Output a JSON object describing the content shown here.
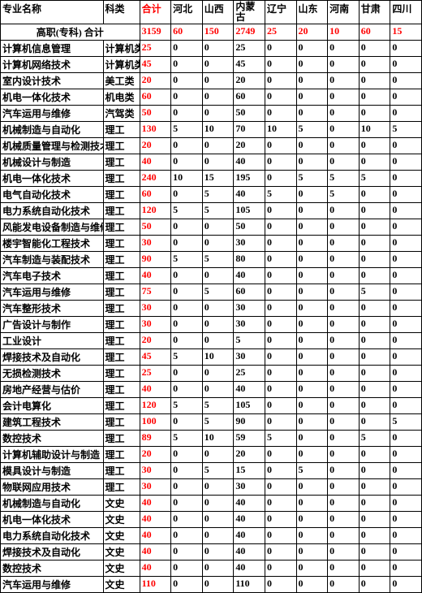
{
  "header": {
    "major": "专业名称",
    "category": "科类",
    "total": "合计",
    "provinces": [
      "河北",
      "山西",
      "内蒙古",
      "辽宁",
      "山东",
      "河南",
      "甘肃",
      "四川"
    ]
  },
  "totalRow": {
    "label": "高职(专科)   合计",
    "values": [
      "3159",
      "60",
      "150",
      "2749",
      "25",
      "20",
      "10",
      "60",
      "15"
    ]
  },
  "rows": [
    {
      "major": "计算机信息管理",
      "cat": "计算机类",
      "v": [
        "25",
        "0",
        "0",
        "25",
        "0",
        "0",
        "0",
        "0",
        "0"
      ]
    },
    {
      "major": "计算机网络技术",
      "cat": "计算机类",
      "v": [
        "45",
        "0",
        "0",
        "45",
        "0",
        "0",
        "0",
        "0",
        "0"
      ]
    },
    {
      "major": "室内设计技术",
      "cat": "美工类",
      "v": [
        "20",
        "0",
        "0",
        "20",
        "0",
        "0",
        "0",
        "0",
        "0"
      ]
    },
    {
      "major": "机电一体化技术",
      "cat": "机电类",
      "v": [
        "60",
        "0",
        "0",
        "60",
        "0",
        "0",
        "0",
        "0",
        "0"
      ]
    },
    {
      "major": "汽车运用与维修",
      "cat": "汽驾类",
      "v": [
        "50",
        "0",
        "0",
        "50",
        "0",
        "0",
        "0",
        "0",
        "0"
      ]
    },
    {
      "major": "机械制造与自动化",
      "cat": "理工",
      "v": [
        "130",
        "5",
        "10",
        "70",
        "10",
        "5",
        "0",
        "10",
        "5"
      ]
    },
    {
      "major": "机械质量管理与检测技术",
      "cat": "理工",
      "v": [
        "20",
        "0",
        "0",
        "20",
        "0",
        "0",
        "0",
        "0",
        "0"
      ]
    },
    {
      "major": "机械设计与制造",
      "cat": "理工",
      "v": [
        "40",
        "0",
        "0",
        "40",
        "0",
        "0",
        "0",
        "0",
        "0"
      ]
    },
    {
      "major": "机电一体化技术",
      "cat": "理工",
      "v": [
        "240",
        "10",
        "15",
        "195",
        "0",
        "5",
        "5",
        "5",
        "0"
      ]
    },
    {
      "major": "电气自动化技术",
      "cat": "理工",
      "v": [
        "60",
        "0",
        "5",
        "40",
        "5",
        "0",
        "5",
        "0",
        "0"
      ]
    },
    {
      "major": "电力系统自动化技术",
      "cat": "理工",
      "v": [
        "120",
        "5",
        "5",
        "105",
        "0",
        "0",
        "0",
        "0",
        "0"
      ]
    },
    {
      "major": "风能发电设备制造与维修",
      "cat": "理工",
      "v": [
        "50",
        "0",
        "0",
        "50",
        "0",
        "0",
        "0",
        "0",
        "0"
      ]
    },
    {
      "major": "楼宇智能化工程技术",
      "cat": "理工",
      "v": [
        "30",
        "0",
        "0",
        "30",
        "0",
        "0",
        "0",
        "0",
        "0"
      ]
    },
    {
      "major": "汽车制造与装配技术",
      "cat": "理工",
      "v": [
        "90",
        "5",
        "5",
        "80",
        "0",
        "0",
        "0",
        "0",
        "0"
      ]
    },
    {
      "major": "汽车电子技术",
      "cat": "理工",
      "v": [
        "40",
        "0",
        "0",
        "40",
        "0",
        "0",
        "0",
        "0",
        "0"
      ]
    },
    {
      "major": "汽车运用与维修",
      "cat": "理工",
      "v": [
        "75",
        "0",
        "5",
        "60",
        "0",
        "0",
        "0",
        "5",
        "0"
      ]
    },
    {
      "major": "汽车整形技术",
      "cat": "理工",
      "v": [
        "30",
        "0",
        "0",
        "30",
        "0",
        "0",
        "0",
        "0",
        "0"
      ]
    },
    {
      "major": "广告设计与制作",
      "cat": "理工",
      "v": [
        "30",
        "0",
        "0",
        "30",
        "0",
        "0",
        "0",
        "0",
        "0"
      ]
    },
    {
      "major": "工业设计",
      "cat": "理工",
      "v": [
        "20",
        "0",
        "0",
        "5",
        "0",
        "0",
        "0",
        "0",
        "0"
      ]
    },
    {
      "major": "焊接技术及自动化",
      "cat": "理工",
      "v": [
        "45",
        "5",
        "10",
        "30",
        "0",
        "0",
        "0",
        "0",
        "0"
      ]
    },
    {
      "major": "无损检测技术",
      "cat": "理工",
      "v": [
        "25",
        "0",
        "0",
        "25",
        "0",
        "0",
        "0",
        "0",
        "0"
      ]
    },
    {
      "major": "房地产经营与估价",
      "cat": "理工",
      "v": [
        "40",
        "0",
        "0",
        "40",
        "0",
        "0",
        "0",
        "0",
        "0"
      ]
    },
    {
      "major": "会计电算化",
      "cat": "理工",
      "v": [
        "120",
        "5",
        "5",
        "105",
        "0",
        "0",
        "0",
        "0",
        "0"
      ]
    },
    {
      "major": "建筑工程技术",
      "cat": "理工",
      "v": [
        "100",
        "0",
        "5",
        "90",
        "0",
        "0",
        "0",
        "0",
        "5"
      ]
    },
    {
      "major": "数控技术",
      "cat": "理工",
      "v": [
        "89",
        "5",
        "10",
        "59",
        "5",
        "0",
        "0",
        "5",
        "0"
      ]
    },
    {
      "major": "计算机辅助设计与制造",
      "cat": "理工",
      "v": [
        "20",
        "0",
        "0",
        "20",
        "0",
        "0",
        "0",
        "0",
        "0"
      ]
    },
    {
      "major": "模具设计与制造",
      "cat": "理工",
      "v": [
        "30",
        "0",
        "5",
        "15",
        "0",
        "5",
        "0",
        "0",
        "0"
      ]
    },
    {
      "major": "物联网应用技术",
      "cat": "理工",
      "v": [
        "30",
        "0",
        "0",
        "30",
        "0",
        "0",
        "0",
        "0",
        "0"
      ]
    },
    {
      "major": "机械制造与自动化",
      "cat": "文史",
      "v": [
        "40",
        "0",
        "0",
        "40",
        "0",
        "0",
        "0",
        "0",
        "0"
      ]
    },
    {
      "major": "机电一体化技术",
      "cat": "文史",
      "v": [
        "40",
        "0",
        "0",
        "40",
        "0",
        "0",
        "0",
        "0",
        "0"
      ]
    },
    {
      "major": "电力系统自动化技术",
      "cat": "文史",
      "v": [
        "40",
        "0",
        "0",
        "40",
        "0",
        "0",
        "0",
        "0",
        "0"
      ]
    },
    {
      "major": "焊接技术及自动化",
      "cat": "文史",
      "v": [
        "40",
        "0",
        "0",
        "40",
        "0",
        "0",
        "0",
        "0",
        "0"
      ]
    },
    {
      "major": "数控技术",
      "cat": "文史",
      "v": [
        "40",
        "0",
        "0",
        "40",
        "0",
        "0",
        "0",
        "0",
        "0"
      ]
    },
    {
      "major": "汽车运用与维修",
      "cat": "文史",
      "v": [
        "110",
        "0",
        "0",
        "110",
        "0",
        "0",
        "0",
        "0",
        "0"
      ]
    }
  ],
  "colors": {
    "red": "#ff0000",
    "border": "#000000",
    "bg": "#ffffff"
  }
}
